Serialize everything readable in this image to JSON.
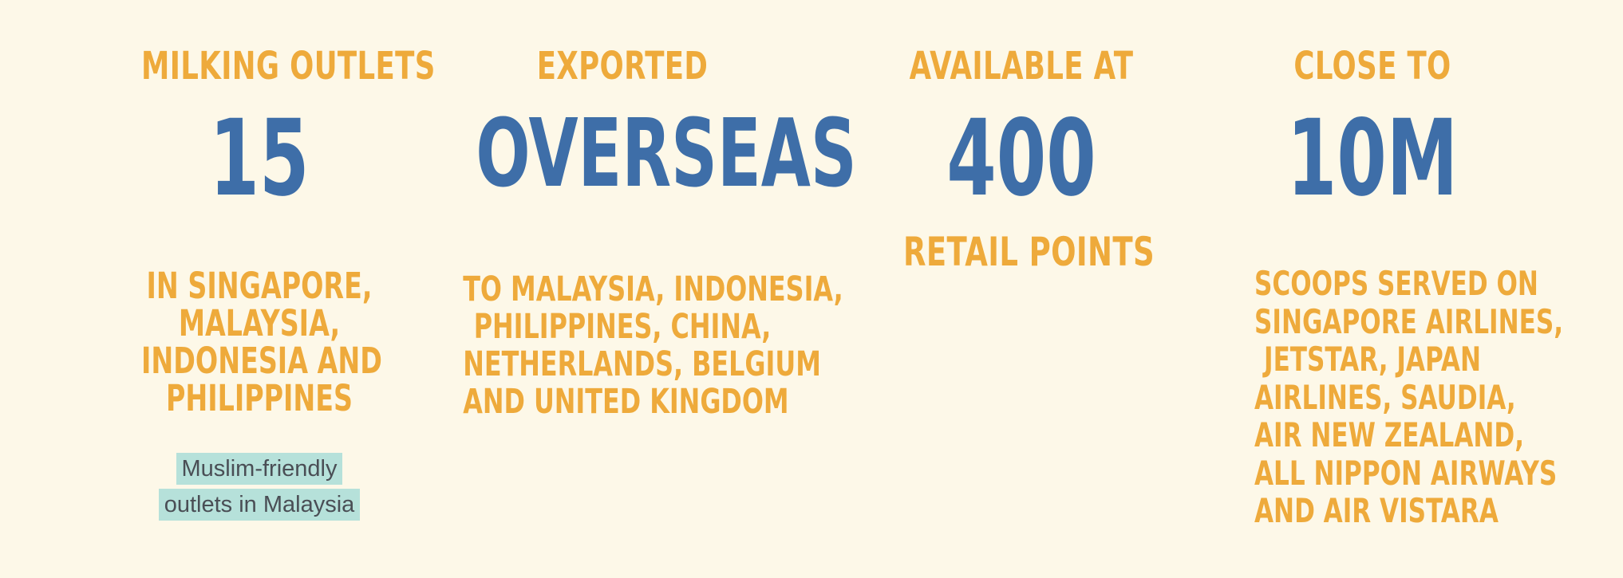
{
  "stats": [
    {
      "top_label": "Milking Outlets",
      "value": "15",
      "lines": [
        "In Singapore,",
        "Malaysia,",
        "Indonesia and",
        "Philippines"
      ],
      "badge": [
        "Muslim-friendly",
        "outlets in Malaysia"
      ]
    },
    {
      "top_label": "Exported",
      "value": "Overseas",
      "lines": [
        "To Malaysia, Indonesia,",
        "Philippines, China,",
        "Netherlands, Belgium",
        "and United Kingdom"
      ]
    },
    {
      "top_label": "Available at",
      "value": "400",
      "bottom_label": "Retail Points"
    },
    {
      "top_label": "Close to",
      "value": "10M",
      "lines": [
        "Scoops served on",
        "Singapore Airlines,",
        "Jetstar, Japan",
        "Airlines, Saudia,",
        "Air New Zealand,",
        "All Nippon Airways",
        "and Air Vistara"
      ]
    }
  ],
  "colors": {
    "background": "#fdf8e8",
    "label": "#eeaa3b",
    "value": "#3e6ea8",
    "badge_bg": "#b6e1da",
    "badge_text": "#4a4e55"
  }
}
